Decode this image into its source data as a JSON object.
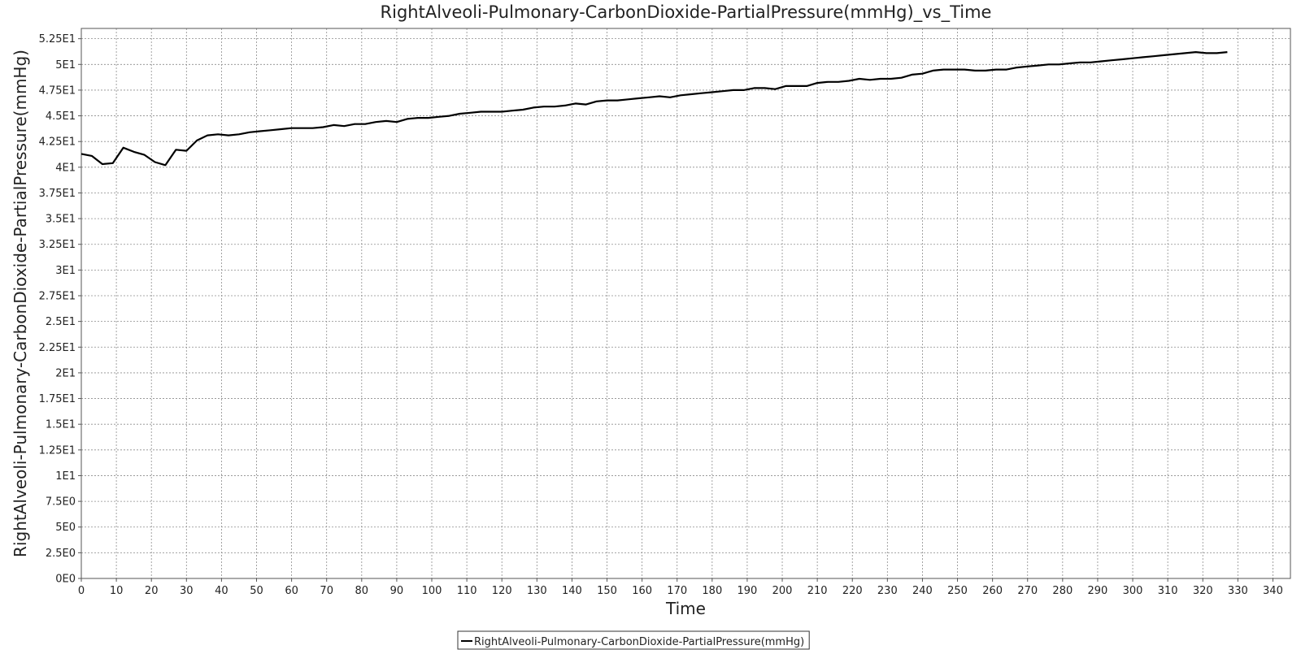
{
  "chart_data": {
    "type": "line",
    "title": "RightAlveoli-Pulmonary-CarbonDioxide-PartialPressure(mmHg)_vs_Time",
    "xlabel": "Time",
    "ylabel": "RightAlveoli-Pulmonary-CarbonDioxide-PartialPressure(mmHg)",
    "xlim": [
      0,
      345
    ],
    "ylim": [
      0,
      53.5
    ],
    "grid": true,
    "legend_position": "bottom-center",
    "x_ticks": [
      0,
      10,
      20,
      30,
      40,
      50,
      60,
      70,
      80,
      90,
      100,
      110,
      120,
      130,
      140,
      150,
      160,
      170,
      180,
      190,
      200,
      210,
      220,
      230,
      240,
      250,
      260,
      270,
      280,
      290,
      300,
      310,
      320,
      330,
      340
    ],
    "y_ticks": [
      {
        "value": 0,
        "label": "0E0"
      },
      {
        "value": 2.5,
        "label": "2.5E0"
      },
      {
        "value": 5,
        "label": "5E0"
      },
      {
        "value": 7.5,
        "label": "7.5E0"
      },
      {
        "value": 10,
        "label": "1E1"
      },
      {
        "value": 12.5,
        "label": "1.25E1"
      },
      {
        "value": 15,
        "label": "1.5E1"
      },
      {
        "value": 17.5,
        "label": "1.75E1"
      },
      {
        "value": 20,
        "label": "2E1"
      },
      {
        "value": 22.5,
        "label": "2.25E1"
      },
      {
        "value": 25,
        "label": "2.5E1"
      },
      {
        "value": 27.5,
        "label": "2.75E1"
      },
      {
        "value": 30,
        "label": "3E1"
      },
      {
        "value": 32.5,
        "label": "3.25E1"
      },
      {
        "value": 35,
        "label": "3.5E1"
      },
      {
        "value": 37.5,
        "label": "3.75E1"
      },
      {
        "value": 40,
        "label": "4E1"
      },
      {
        "value": 42.5,
        "label": "4.25E1"
      },
      {
        "value": 45,
        "label": "4.5E1"
      },
      {
        "value": 47.5,
        "label": "4.75E1"
      },
      {
        "value": 50,
        "label": "5E1"
      },
      {
        "value": 52.5,
        "label": "5.25E1"
      }
    ],
    "series": [
      {
        "name": "RightAlveoli-Pulmonary-CarbonDioxide-PartialPressure(mmHg)",
        "color": "#000000",
        "x": [
          0,
          3,
          6,
          9,
          12,
          15,
          18,
          21,
          24,
          27,
          30,
          33,
          36,
          39,
          42,
          45,
          48,
          51,
          54,
          57,
          60,
          63,
          66,
          69,
          72,
          75,
          78,
          81,
          84,
          87,
          90,
          93,
          96,
          99,
          102,
          105,
          108,
          111,
          114,
          117,
          120,
          123,
          126,
          129,
          132,
          135,
          138,
          141,
          144,
          147,
          150,
          153,
          156,
          159,
          162,
          165,
          168,
          171,
          174,
          177,
          180,
          183,
          186,
          189,
          192,
          195,
          198,
          201,
          204,
          207,
          210,
          213,
          216,
          219,
          222,
          225,
          228,
          231,
          234,
          237,
          240,
          243,
          246,
          249,
          252,
          255,
          258,
          261,
          264,
          267,
          270,
          273,
          276,
          279,
          282,
          285,
          288,
          291,
          294,
          297,
          300,
          303,
          306,
          309,
          312,
          315,
          318,
          321,
          324,
          327
        ],
        "values": [
          41.3,
          41.1,
          40.3,
          40.4,
          41.9,
          41.5,
          41.2,
          40.5,
          40.2,
          41.7,
          41.6,
          42.6,
          43.1,
          43.2,
          43.1,
          43.2,
          43.4,
          43.5,
          43.6,
          43.7,
          43.8,
          43.8,
          43.8,
          43.9,
          44.1,
          44.0,
          44.2,
          44.2,
          44.4,
          44.5,
          44.4,
          44.7,
          44.8,
          44.8,
          44.9,
          45.0,
          45.2,
          45.3,
          45.4,
          45.4,
          45.4,
          45.5,
          45.6,
          45.8,
          45.9,
          45.9,
          46.0,
          46.2,
          46.1,
          46.4,
          46.5,
          46.5,
          46.6,
          46.7,
          46.8,
          46.9,
          46.8,
          47.0,
          47.1,
          47.2,
          47.3,
          47.4,
          47.5,
          47.5,
          47.7,
          47.7,
          47.6,
          47.9,
          47.9,
          47.9,
          48.2,
          48.3,
          48.3,
          48.4,
          48.6,
          48.5,
          48.6,
          48.6,
          48.7,
          49.0,
          49.1,
          49.4,
          49.5,
          49.5,
          49.5,
          49.4,
          49.4,
          49.5,
          49.5,
          49.7,
          49.8,
          49.9,
          50.0,
          50.0,
          50.1,
          50.2,
          50.2,
          50.3,
          50.4,
          50.5,
          50.6,
          50.7,
          50.8,
          50.9,
          51.0,
          51.1,
          51.2,
          51.1,
          51.1,
          51.2
        ]
      }
    ]
  }
}
